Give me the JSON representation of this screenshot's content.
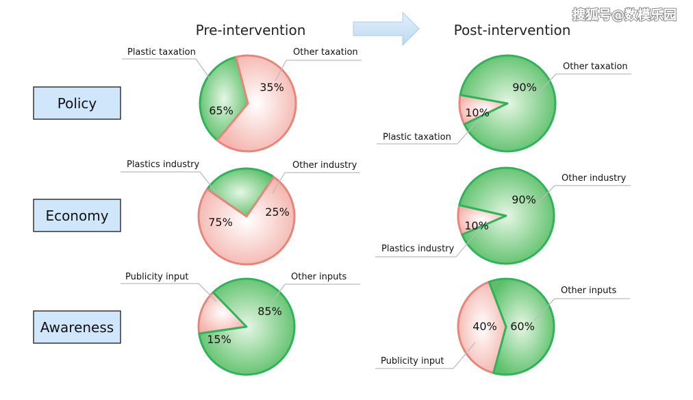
{
  "watermark": "搜狐号@数模乐园",
  "headers": {
    "pre": "Pre-intervention",
    "post": "Post-intervention"
  },
  "rows": [
    {
      "label": "Policy"
    },
    {
      "label": "Economy"
    },
    {
      "label": "Awareness"
    }
  ],
  "colors": {
    "green_fill": "#5cc06a",
    "green_edge": "#2fb35a",
    "red_fill": "#f4b5ae",
    "red_edge": "#e8857a",
    "label_box_fill": "#cfe6fb",
    "label_box_edge": "#333333",
    "arrow_fill": "#cfe4f7",
    "arrow_edge": "#a9cbe8"
  },
  "chart_data": [
    {
      "type": "pie",
      "row": "Policy",
      "stage": "Pre-intervention",
      "slices": [
        {
          "label": "Plastic taxation",
          "value": 65,
          "text": "65%"
        },
        {
          "label": "Other taxation",
          "value": 35,
          "text": "35%"
        }
      ]
    },
    {
      "type": "pie",
      "row": "Economy",
      "stage": "Pre-intervention",
      "slices": [
        {
          "label": "Plastics industry",
          "value": 75,
          "text": "75%"
        },
        {
          "label": "Other industry",
          "value": 25,
          "text": "25%"
        }
      ]
    },
    {
      "type": "pie",
      "row": "Awareness",
      "stage": "Pre-intervention",
      "slices": [
        {
          "label": "Publicity input",
          "value": 15,
          "text": "15%"
        },
        {
          "label": "Other inputs",
          "value": 85,
          "text": "85%"
        }
      ]
    },
    {
      "type": "pie",
      "row": "Policy",
      "stage": "Post-intervention",
      "slices": [
        {
          "label": "Plastic taxation",
          "value": 10,
          "text": "10%"
        },
        {
          "label": "Other taxation",
          "value": 90,
          "text": "90%"
        }
      ]
    },
    {
      "type": "pie",
      "row": "Economy",
      "stage": "Post-intervention",
      "slices": [
        {
          "label": "Plastics industry",
          "value": 10,
          "text": "10%"
        },
        {
          "label": "Other industry",
          "value": 90,
          "text": "90%"
        }
      ]
    },
    {
      "type": "pie",
      "row": "Awareness",
      "stage": "Post-intervention",
      "slices": [
        {
          "label": "Publicity input",
          "value": 40,
          "text": "40%"
        },
        {
          "label": "Other inputs",
          "value": 60,
          "text": "60%"
        }
      ]
    }
  ]
}
